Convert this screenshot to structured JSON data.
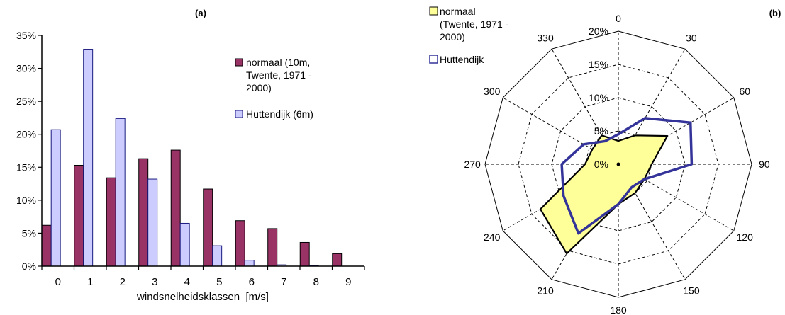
{
  "chart_data": [
    {
      "type": "bar",
      "panel_label": "(a)",
      "xlabel": "windsnelheidsklassen  [m/s]",
      "ylabel": "",
      "categories": [
        "0",
        "1",
        "2",
        "3",
        "4",
        "5",
        "6",
        "7",
        "8",
        "9"
      ],
      "ylim": [
        0,
        0.35
      ],
      "yticks": [
        0,
        0.05,
        0.1,
        0.15,
        0.2,
        0.25,
        0.3,
        0.35
      ],
      "ytick_labels": [
        "0%",
        "5%",
        "10%",
        "15%",
        "20%",
        "25%",
        "30%",
        "35%"
      ],
      "grid": false,
      "legend_position": "top-right",
      "series": [
        {
          "name_lines": [
            "normaal (10m,",
            "Twente, 1971 -",
            "2000)"
          ],
          "color": "#993366",
          "values": [
            0.062,
            0.153,
            0.134,
            0.163,
            0.176,
            0.117,
            0.069,
            0.057,
            0.036,
            0.019
          ]
        },
        {
          "name_lines": [
            "Huttendijk (6m)"
          ],
          "color": "#ccccff",
          "values": [
            0.207,
            0.329,
            0.224,
            0.132,
            0.065,
            0.031,
            0.009,
            0.002,
            0.001,
            0.0
          ]
        }
      ]
    },
    {
      "type": "radar",
      "panel_label": "(b)",
      "directions": [
        0,
        30,
        60,
        90,
        120,
        150,
        180,
        210,
        240,
        270,
        300,
        330
      ],
      "rlim": [
        0,
        0.2
      ],
      "rticks": [
        0,
        0.05,
        0.1,
        0.15,
        0.2
      ],
      "rtick_labels": [
        "0%",
        "5%",
        "10%",
        "15%",
        "20%"
      ],
      "legend_position": "top-left",
      "series": [
        {
          "name_lines": [
            "normaal",
            "(Twente, 1971 -",
            "2000)"
          ],
          "fill": "#ffff99",
          "stroke": "#000000",
          "values": [
            0.035,
            0.05,
            0.085,
            0.05,
            0.045,
            0.05,
            0.06,
            0.155,
            0.135,
            0.05,
            0.045,
            0.05
          ]
        },
        {
          "name_lines": [
            "Huttendijk"
          ],
          "fill": "none",
          "stroke": "#333399",
          "values": [
            0.045,
            0.08,
            0.125,
            0.11,
            0.045,
            0.04,
            0.06,
            0.12,
            0.095,
            0.085,
            0.06,
            0.04
          ]
        }
      ]
    }
  ]
}
